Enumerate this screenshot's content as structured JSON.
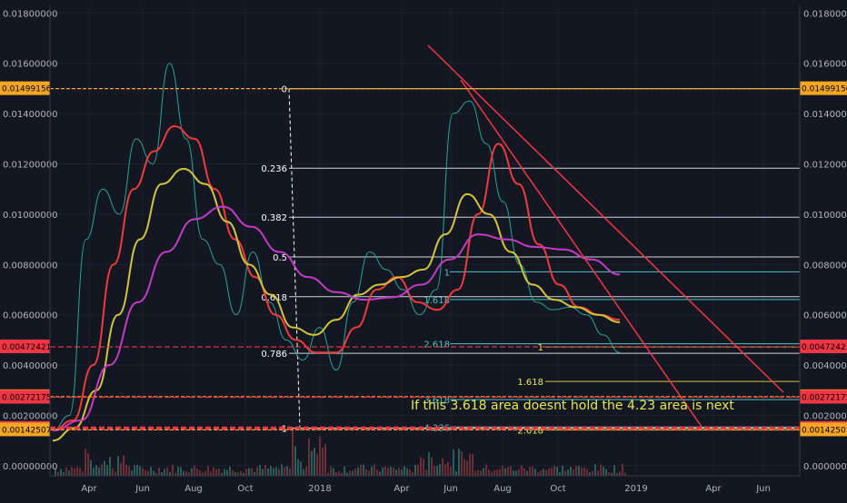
{
  "chart_data": {
    "type": "line",
    "title": "",
    "xlabel": "",
    "ylabel": "",
    "x_tick_labels": [
      "Apr",
      "Jun",
      "Aug",
      "Oct",
      "2018",
      "Apr",
      "Jun",
      "Aug",
      "Oct",
      "2019",
      "Apr",
      "Jun"
    ],
    "y_tick_labels": [
      "0.01800000",
      "0.01600000",
      "0.01400000",
      "0.01200000",
      "0.01000000",
      "0.00800000",
      "0.00600000",
      "0.00400000",
      "0.00200000",
      "0.00000000"
    ],
    "y_ticks": [
      0.018,
      0.016,
      0.014,
      0.012,
      0.01,
      0.008,
      0.006,
      0.004,
      0.002,
      0.0
    ],
    "ylim": [
      -0.0004,
      0.0183
    ],
    "price_markers": [
      {
        "label": "0.01499156",
        "value": 0.01499156,
        "color": "#f5a623",
        "side": "both"
      },
      {
        "label": "0.00472421",
        "value": 0.00472421,
        "color": "#f23645",
        "side": "both"
      },
      {
        "label": "0.00274674",
        "value": 0.00274674,
        "color": "#f5a623",
        "side": "both"
      },
      {
        "label": "0.00272175",
        "value": 0.00272175,
        "color": "#f23645",
        "side": "both"
      },
      {
        "label": "0.00148774",
        "value": 0.00148774,
        "color": "#f23645",
        "side": "both"
      },
      {
        "label": "0.00142507",
        "value": 0.00142507,
        "color": "#f5a623",
        "side": "both"
      }
    ],
    "fib_levels_main": [
      {
        "label": "0",
        "value": 0.01499
      },
      {
        "label": "0.236",
        "value": 0.01183
      },
      {
        "label": "0.382",
        "value": 0.00988
      },
      {
        "label": "0.5",
        "value": 0.0083
      },
      {
        "label": "0.618",
        "value": 0.00672
      },
      {
        "label": "0.786",
        "value": 0.00447
      },
      {
        "label": "1",
        "value": 0.00149
      }
    ],
    "fib_levels_cyan": [
      {
        "label": "1",
        "value": 0.00771
      },
      {
        "label": "1.618",
        "value": 0.00661
      },
      {
        "label": "2.618",
        "value": 0.00485
      },
      {
        "label": "3.618",
        "value": 0.00263
      },
      {
        "label": "4.236",
        "value": 0.00154
      }
    ],
    "fib_levels_yellow": [
      {
        "label": "1",
        "value": 0.00472
      },
      {
        "label": "1.618",
        "value": 0.00335
      },
      {
        "label": "2.618",
        "value": 0.00142
      }
    ],
    "annotation": "If this 3.618 area doesnt hold the 4.23 area is next",
    "series": [
      {
        "color": "#26a69a",
        "values": [
          0.0014,
          0.002,
          0.009,
          0.011,
          0.01,
          0.013,
          0.012,
          0.016,
          0.013,
          0.009,
          0.008,
          0.006,
          0.0085,
          0.0065,
          0.005,
          0.0042,
          0.0055,
          0.0038,
          0.0065,
          0.0085,
          0.0078,
          0.007,
          0.006,
          0.007,
          0.014,
          0.0145,
          0.0128,
          0.0105,
          0.008,
          0.0065,
          0.0062,
          0.0063,
          0.006,
          0.0052,
          0.0045
        ]
      },
      {
        "color": "#ef3b3b",
        "values": [
          0.0014,
          0.0018,
          0.004,
          0.008,
          0.011,
          0.0125,
          0.0135,
          0.013,
          0.011,
          0.009,
          0.0075,
          0.006,
          0.005,
          0.0045,
          0.0045,
          0.0055,
          0.007,
          0.0075,
          0.0065,
          0.0062,
          0.007,
          0.01,
          0.0128,
          0.0112,
          0.0088,
          0.0072,
          0.0063,
          0.006,
          0.0058
        ]
      },
      {
        "color": "#d4c43a",
        "values": [
          0.001,
          0.0015,
          0.003,
          0.006,
          0.009,
          0.0112,
          0.0118,
          0.0112,
          0.0097,
          0.008,
          0.0068,
          0.0055,
          0.0052,
          0.0058,
          0.0068,
          0.0072,
          0.0075,
          0.0078,
          0.0092,
          0.0108,
          0.01,
          0.0085,
          0.0072,
          0.0066,
          0.0063,
          0.006,
          0.0057
        ]
      },
      {
        "color": "#c33bc6",
        "values": [
          0.0014,
          0.0018,
          0.004,
          0.0065,
          0.0085,
          0.0098,
          0.0103,
          0.0095,
          0.0085,
          0.0075,
          0.0069,
          0.0066,
          0.0067,
          0.0072,
          0.0082,
          0.0092,
          0.009,
          0.0087,
          0.0086,
          0.0082,
          0.0076
        ]
      }
    ]
  }
}
